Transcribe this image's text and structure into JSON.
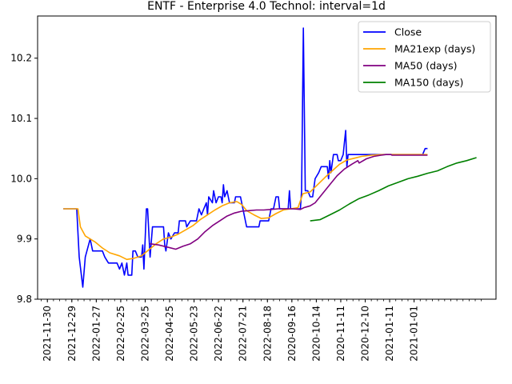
{
  "chart_data": {
    "type": "line",
    "title": "ENTF - Enterprise 4.0 Technol: interval=1d",
    "xlabel": "",
    "ylabel": "",
    "ylim": [
      9.8,
      10.27
    ],
    "x_tick_labels": [
      "2021-11-30",
      "2021-12-29",
      "2022-01-27",
      "2022-02-25",
      "2022-03-25",
      "2022-04-25",
      "2022-05-23",
      "2022-06-22",
      "2022-07-21",
      "2022-08-18",
      "2020-09-16",
      "2020-10-14",
      "2020-11-11",
      "2020-12-10",
      "2021-01-11",
      "2021-01-01"
    ],
    "y_ticks": [
      9.8,
      9.9,
      10.0,
      10.1,
      10.2
    ],
    "y_tick_labels": [
      "9.8",
      "9.9",
      "10.0",
      "10.1",
      "10.2"
    ],
    "grid": false,
    "legend_position": "top-right",
    "series": [
      {
        "name": "Close",
        "color": "#0000ff",
        "points": [
          [
            0.9,
            9.95
          ],
          [
            1.45,
            9.95
          ],
          [
            1.55,
            9.87
          ],
          [
            1.7,
            9.82
          ],
          [
            1.8,
            9.87
          ],
          [
            2.0,
            9.9
          ],
          [
            2.1,
            9.88
          ],
          [
            2.5,
            9.88
          ],
          [
            2.6,
            9.87
          ],
          [
            2.75,
            9.86
          ],
          [
            3.1,
            9.86
          ],
          [
            3.2,
            9.85
          ],
          [
            3.3,
            9.86
          ],
          [
            3.4,
            9.84
          ],
          [
            3.5,
            9.86
          ],
          [
            3.55,
            9.84
          ],
          [
            3.7,
            9.84
          ],
          [
            3.75,
            9.88
          ],
          [
            3.85,
            9.88
          ],
          [
            3.95,
            9.87
          ],
          [
            4.1,
            9.87
          ],
          [
            4.15,
            9.89
          ],
          [
            4.2,
            9.85
          ],
          [
            4.3,
            9.95
          ],
          [
            4.35,
            9.95
          ],
          [
            4.45,
            9.87
          ],
          [
            4.55,
            9.92
          ],
          [
            5.0,
            9.92
          ],
          [
            5.05,
            9.89
          ],
          [
            5.1,
            9.88
          ],
          [
            5.2,
            9.91
          ],
          [
            5.3,
            9.9
          ],
          [
            5.45,
            9.91
          ],
          [
            5.6,
            9.91
          ],
          [
            5.65,
            9.93
          ],
          [
            5.9,
            9.93
          ],
          [
            5.95,
            9.92
          ],
          [
            6.1,
            9.93
          ],
          [
            6.35,
            9.93
          ],
          [
            6.45,
            9.95
          ],
          [
            6.55,
            9.94
          ],
          [
            6.65,
            9.95
          ],
          [
            6.75,
            9.96
          ],
          [
            6.8,
            9.94
          ],
          [
            6.85,
            9.97
          ],
          [
            7.0,
            9.96
          ],
          [
            7.05,
            9.98
          ],
          [
            7.15,
            9.96
          ],
          [
            7.25,
            9.97
          ],
          [
            7.35,
            9.97
          ],
          [
            7.4,
            9.96
          ],
          [
            7.45,
            9.99
          ],
          [
            7.5,
            9.97
          ],
          [
            7.6,
            9.98
          ],
          [
            7.7,
            9.96
          ],
          [
            7.9,
            9.96
          ],
          [
            7.95,
            9.97
          ],
          [
            8.15,
            9.97
          ],
          [
            8.3,
            9.94
          ],
          [
            8.4,
            9.92
          ],
          [
            8.9,
            9.92
          ],
          [
            8.95,
            9.93
          ],
          [
            9.3,
            9.93
          ],
          [
            9.4,
            9.95
          ],
          [
            9.5,
            9.95
          ],
          [
            9.6,
            9.97
          ],
          [
            9.7,
            9.97
          ],
          [
            9.75,
            9.95
          ],
          [
            10.1,
            9.95
          ],
          [
            10.15,
            9.98
          ],
          [
            10.2,
            9.95
          ],
          [
            10.6,
            9.95
          ],
          [
            10.65,
            9.98
          ],
          [
            10.72,
            10.25
          ],
          [
            10.8,
            9.98
          ],
          [
            10.9,
            9.98
          ],
          [
            11.0,
            9.97
          ],
          [
            11.1,
            9.97
          ],
          [
            11.2,
            10.0
          ],
          [
            11.35,
            10.01
          ],
          [
            11.45,
            10.02
          ],
          [
            11.7,
            10.02
          ],
          [
            11.75,
            10.0
          ],
          [
            11.8,
            10.03
          ],
          [
            11.85,
            10.01
          ],
          [
            11.95,
            10.04
          ],
          [
            12.1,
            10.04
          ],
          [
            12.15,
            10.03
          ],
          [
            12.25,
            10.03
          ],
          [
            12.35,
            10.04
          ],
          [
            12.4,
            10.06
          ],
          [
            12.45,
            10.08
          ],
          [
            12.5,
            10.02
          ],
          [
            12.55,
            10.04
          ],
          [
            15.6,
            10.04
          ],
          [
            15.7,
            10.05
          ],
          [
            15.8,
            10.05
          ]
        ]
      },
      {
        "name": "MA21exp (days)",
        "color": "#ffa500",
        "points": [
          [
            0.9,
            9.95
          ],
          [
            1.5,
            9.95
          ],
          [
            1.6,
            9.92
          ],
          [
            1.8,
            9.905
          ],
          [
            2.0,
            9.9
          ],
          [
            2.2,
            9.895
          ],
          [
            2.5,
            9.885
          ],
          [
            2.8,
            9.877
          ],
          [
            3.2,
            9.872
          ],
          [
            3.5,
            9.866
          ],
          [
            3.8,
            9.868
          ],
          [
            4.1,
            9.872
          ],
          [
            4.4,
            9.882
          ],
          [
            4.7,
            9.892
          ],
          [
            5.0,
            9.9
          ],
          [
            5.3,
            9.903
          ],
          [
            5.6,
            9.908
          ],
          [
            5.9,
            9.915
          ],
          [
            6.2,
            9.922
          ],
          [
            6.5,
            9.932
          ],
          [
            6.8,
            9.94
          ],
          [
            7.1,
            9.948
          ],
          [
            7.4,
            9.955
          ],
          [
            7.7,
            9.96
          ],
          [
            8.0,
            9.962
          ],
          [
            8.2,
            9.957
          ],
          [
            8.4,
            9.947
          ],
          [
            8.7,
            9.94
          ],
          [
            9.0,
            9.934
          ],
          [
            9.3,
            9.935
          ],
          [
            9.6,
            9.942
          ],
          [
            9.9,
            9.948
          ],
          [
            10.2,
            9.95
          ],
          [
            10.5,
            9.952
          ],
          [
            10.7,
            9.975
          ],
          [
            11.0,
            9.978
          ],
          [
            11.3,
            9.99
          ],
          [
            11.6,
            10.002
          ],
          [
            11.9,
            10.013
          ],
          [
            12.2,
            10.024
          ],
          [
            12.5,
            10.031
          ],
          [
            12.8,
            10.034
          ],
          [
            13.1,
            10.037
          ],
          [
            13.5,
            10.039
          ],
          [
            14.0,
            10.04
          ],
          [
            15.8,
            10.04
          ]
        ]
      },
      {
        "name": "MA50 (days)",
        "color": "#800080",
        "points": [
          [
            4.45,
            9.892
          ],
          [
            4.8,
            9.89
          ],
          [
            5.2,
            9.886
          ],
          [
            5.5,
            9.883
          ],
          [
            5.8,
            9.888
          ],
          [
            6.1,
            9.892
          ],
          [
            6.4,
            9.9
          ],
          [
            6.7,
            9.912
          ],
          [
            7.0,
            9.922
          ],
          [
            7.3,
            9.93
          ],
          [
            7.6,
            9.938
          ],
          [
            7.9,
            9.943
          ],
          [
            8.2,
            9.946
          ],
          [
            8.5,
            9.947
          ],
          [
            8.8,
            9.948
          ],
          [
            9.1,
            9.948
          ],
          [
            9.4,
            9.949
          ],
          [
            9.7,
            9.95
          ],
          [
            10.0,
            9.95
          ],
          [
            10.3,
            9.95
          ],
          [
            10.6,
            9.949
          ],
          [
            10.75,
            9.952
          ],
          [
            11.0,
            9.955
          ],
          [
            11.2,
            9.96
          ],
          [
            11.5,
            9.975
          ],
          [
            11.8,
            9.99
          ],
          [
            12.1,
            10.005
          ],
          [
            12.4,
            10.016
          ],
          [
            12.7,
            10.024
          ],
          [
            12.95,
            10.03
          ],
          [
            13.0,
            10.026
          ],
          [
            13.3,
            10.033
          ],
          [
            13.6,
            10.037
          ],
          [
            13.9,
            10.039
          ],
          [
            14.1,
            10.04
          ],
          [
            14.3,
            10.04
          ],
          [
            14.35,
            10.039
          ],
          [
            15.8,
            10.039
          ]
        ]
      },
      {
        "name": "MA150 (days)",
        "color": "#008000",
        "points": [
          [
            11.0,
            9.93
          ],
          [
            11.4,
            9.932
          ],
          [
            11.8,
            9.94
          ],
          [
            12.2,
            9.948
          ],
          [
            12.6,
            9.958
          ],
          [
            13.0,
            9.967
          ],
          [
            13.4,
            9.973
          ],
          [
            13.8,
            9.98
          ],
          [
            14.2,
            9.988
          ],
          [
            14.6,
            9.994
          ],
          [
            15.0,
            10.0
          ],
          [
            15.4,
            10.004
          ],
          [
            15.8,
            10.009
          ],
          [
            16.2,
            10.013
          ],
          [
            16.6,
            10.02
          ],
          [
            17.0,
            10.026
          ],
          [
            17.4,
            10.03
          ],
          [
            17.8,
            10.035
          ]
        ]
      }
    ]
  }
}
